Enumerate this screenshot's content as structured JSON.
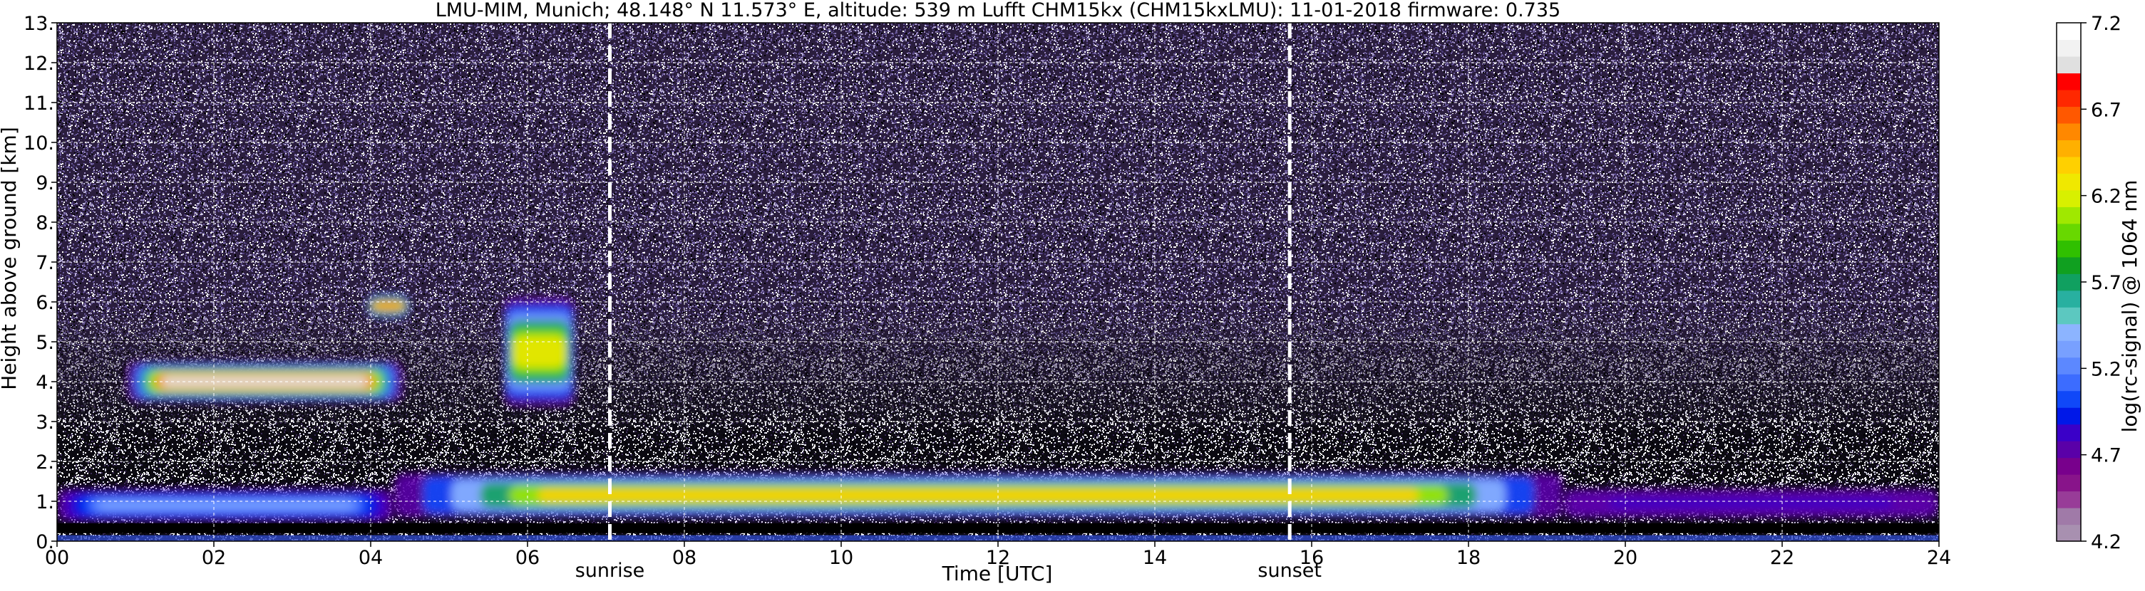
{
  "colors": {
    "background": "#2a1d3d",
    "grid": "#ffffff",
    "marker_line": "#ffffff",
    "noise_purple": "#6a5a9a",
    "noise_white": "#ffffff",
    "noise_black": "#000000"
  },
  "chart_data": {
    "type": "heatmap",
    "title": "LMU-MIM, Munich; 48.148° N 11.573° E, altitude: 539 m    Lufft CHM15kx (CHM15kxLMU): 11-01-2018    firmware: 0.735",
    "xlabel": "Time [UTC]",
    "ylabel": "Height above ground [km]",
    "xlim": [
      0,
      24
    ],
    "ylim": [
      0,
      13
    ],
    "x_ticks": [
      0,
      2,
      4,
      6,
      8,
      10,
      12,
      14,
      16,
      18,
      20,
      22,
      24
    ],
    "x_tick_labels": [
      "00",
      "02",
      "04",
      "06",
      "08",
      "10",
      "12",
      "14",
      "16",
      "18",
      "20",
      "22",
      "24"
    ],
    "y_ticks": [
      0,
      1,
      2,
      3,
      4,
      5,
      6,
      7,
      8,
      9,
      10,
      11,
      12,
      13
    ],
    "y_tick_labels": [
      "0.",
      "1.",
      "2.",
      "3.",
      "4.",
      "5.",
      "6.",
      "7.",
      "8.",
      "9.",
      "10.",
      "11.",
      "12.",
      "13."
    ],
    "grid": true,
    "markers": [
      {
        "label": "sunrise",
        "x": 7.05
      },
      {
        "label": "sunset",
        "x": 15.72
      }
    ],
    "colorbar": {
      "label": "log(rc-signal) @ 1064 nm",
      "range": [
        4.2,
        7.2
      ],
      "ticks": [
        4.2,
        4.7,
        5.2,
        5.7,
        6.2,
        6.7,
        7.2
      ],
      "tick_labels": [
        "4.2",
        "4.7",
        "5.2",
        "5.7",
        "6.2",
        "6.7",
        "7.2"
      ],
      "colors": [
        "#a890b0",
        "#a07aa8",
        "#983c98",
        "#88148a",
        "#78008c",
        "#5a00a8",
        "#3a00c8",
        "#0018e8",
        "#1048f8",
        "#3c6cff",
        "#5c88ff",
        "#78a0ff",
        "#8cb4ff",
        "#5cc8c0",
        "#28b0a0",
        "#10a060",
        "#10a020",
        "#30c000",
        "#68d800",
        "#a0e800",
        "#d8f000",
        "#f0e800",
        "#ffd000",
        "#ffb000",
        "#ff8800",
        "#ff5800",
        "#ff2800",
        "#ff0000",
        "#e0e0e0",
        "#f2f2f2",
        "#ffffff"
      ]
    },
    "layers": [
      {
        "name": "aerosol layer",
        "x_start": 4.3,
        "x_end": 19.2,
        "bottom_km": 0.6,
        "top_km": 1.7,
        "peak_value": 6.4
      },
      {
        "name": "early aerosol layer",
        "x_start": 0.0,
        "x_end": 4.3,
        "bottom_km": 0.5,
        "top_km": 1.3,
        "peak_value": 5.3
      },
      {
        "name": "late residual layer",
        "x_start": 19.2,
        "x_end": 24.0,
        "bottom_km": 0.6,
        "top_km": 1.3,
        "peak_value": 4.8
      },
      {
        "name": "cloud layer",
        "x_start": 0.9,
        "x_end": 4.4,
        "bottom_km": 3.5,
        "top_km": 4.5,
        "peak_value": 7.0
      },
      {
        "name": "cloud patch",
        "x_start": 3.95,
        "x_end": 4.5,
        "bottom_km": 5.6,
        "top_km": 6.2,
        "peak_value": 6.6
      },
      {
        "name": "cloud patch",
        "x_start": 5.7,
        "x_end": 6.6,
        "bottom_km": 3.4,
        "top_km": 6.1,
        "peak_value": 6.3
      }
    ]
  }
}
